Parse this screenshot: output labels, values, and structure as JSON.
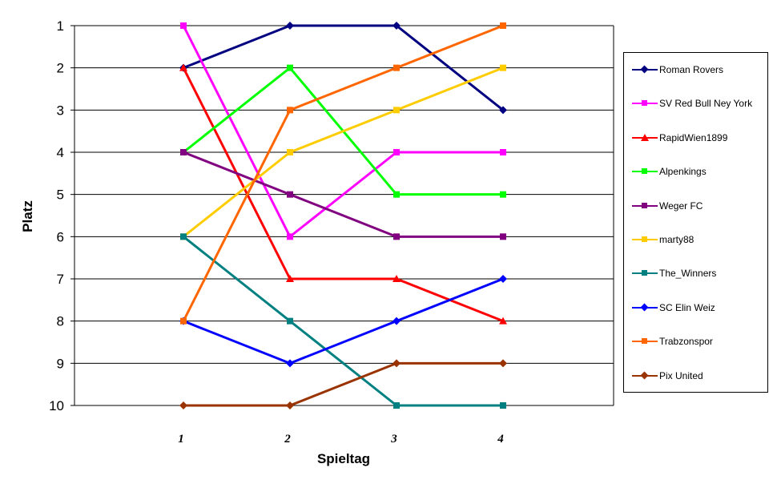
{
  "chart_data": {
    "type": "line",
    "xlabel": "Spieltag",
    "ylabel": "Platz",
    "x": [
      "1",
      "2",
      "3",
      "4"
    ],
    "y_ticks": [
      "1",
      "2",
      "3",
      "4",
      "5",
      "6",
      "7",
      "8",
      "9",
      "10"
    ],
    "ylim": [
      1,
      10
    ],
    "y_inverted": true,
    "grid": "horizontal",
    "legend_position": "right",
    "series": [
      {
        "name": "Roman Rovers",
        "values": [
          2,
          1,
          1,
          3
        ],
        "color": "#000080",
        "marker": "diamond"
      },
      {
        "name": "SV Red Bull Ney York",
        "values": [
          1,
          6,
          4,
          4
        ],
        "color": "#FF00FF",
        "marker": "square"
      },
      {
        "name": "RapidWien1899",
        "values": [
          2,
          7,
          7,
          8
        ],
        "color": "#FF0000",
        "marker": "triangle"
      },
      {
        "name": "Alpenkings",
        "values": [
          4,
          2,
          5,
          5
        ],
        "color": "#00FF00",
        "marker": "square"
      },
      {
        "name": "Weger FC",
        "values": [
          4,
          5,
          6,
          6
        ],
        "color": "#800080",
        "marker": "square"
      },
      {
        "name": "marty88",
        "values": [
          6,
          4,
          3,
          2
        ],
        "color": "#FFCC00",
        "marker": "square"
      },
      {
        "name": "The_Winners",
        "values": [
          6,
          8,
          10,
          10
        ],
        "color": "#008080",
        "marker": "square"
      },
      {
        "name": "SC Elin Weiz",
        "values": [
          8,
          9,
          8,
          7
        ],
        "color": "#0000FF",
        "marker": "diamond"
      },
      {
        "name": "Trabzonspor",
        "values": [
          8,
          3,
          2,
          1
        ],
        "color": "#FF6600",
        "marker": "square"
      },
      {
        "name": "Pix United",
        "values": [
          10,
          10,
          9,
          9
        ],
        "color": "#993300",
        "marker": "diamond"
      }
    ]
  }
}
